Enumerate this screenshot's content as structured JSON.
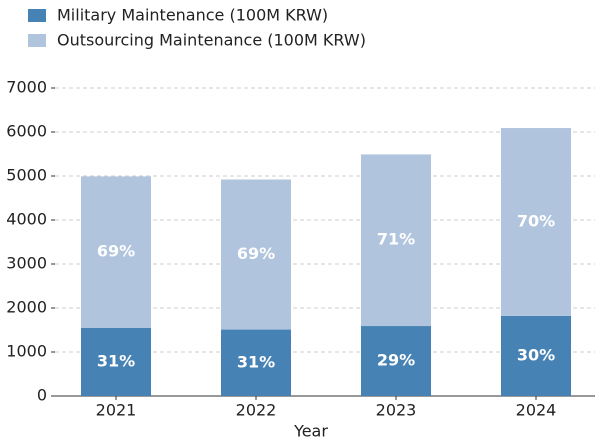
{
  "chart_data": {
    "type": "stacked_bar",
    "categories": [
      "2021",
      "2022",
      "2023",
      "2024"
    ],
    "series": [
      {
        "name": "Military Maintenance (100M KRW)",
        "color": "#4682b4",
        "values": [
          1550,
          1510,
          1590,
          1820
        ],
        "percent_labels": [
          "31%",
          "31%",
          "29%",
          "30%"
        ]
      },
      {
        "name": "Outsourcing Maintenance (100M KRW)",
        "color": "#b0c4de",
        "values": [
          3440,
          3410,
          3900,
          4270
        ],
        "percent_labels": [
          "69%",
          "69%",
          "71%",
          "70%"
        ]
      }
    ],
    "xlabel": "Year",
    "ylim": [
      0,
      7000
    ],
    "yticks": [
      0,
      1000,
      2000,
      3000,
      4000,
      5000,
      6000,
      7000
    ],
    "grid": true,
    "legend": "upper left"
  }
}
